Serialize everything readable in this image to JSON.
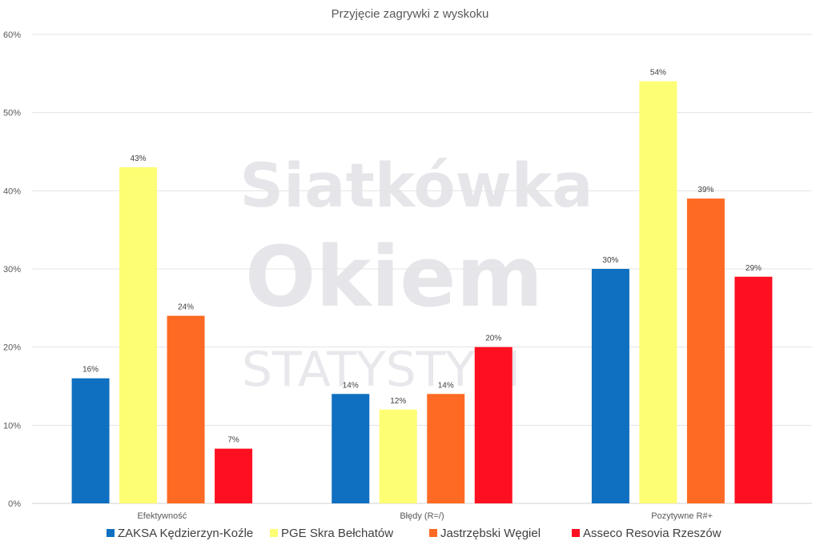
{
  "chart_data": {
    "type": "bar",
    "title": "Przyjęcie zagrywki z wyskoku",
    "categories": [
      "Efektywność",
      "Błędy (R=/)",
      "Pozytywne R#+"
    ],
    "series": [
      {
        "name": "ZAKSA Kędzierzyn-Koźle",
        "color": "#0f6fc0",
        "values": [
          16,
          14,
          30
        ],
        "labels": [
          "16%",
          "14%",
          "30%"
        ]
      },
      {
        "name": "PGE Skra Bełchatów",
        "color": "#fefe75",
        "values": [
          43,
          12,
          54
        ],
        "labels": [
          "43%",
          "12%",
          "54%"
        ]
      },
      {
        "name": "Jastrzębski Węgiel",
        "color": "#fe6a23",
        "values": [
          24,
          14,
          39
        ],
        "labels": [
          "24%",
          "14%",
          "39%"
        ]
      },
      {
        "name": "Asseco Resovia Rzeszów",
        "color": "#fe1020",
        "values": [
          7,
          20,
          29
        ],
        "labels": [
          "7%",
          "20%",
          "29%"
        ]
      }
    ],
    "ylim": [
      0,
      60
    ],
    "yticks": [
      0,
      10,
      20,
      30,
      40,
      50,
      60
    ],
    "ytick_labels": [
      "0%",
      "10%",
      "20%",
      "30%",
      "40%",
      "50%",
      "60%"
    ],
    "grid": true,
    "legend": "bottom",
    "xlabel": "",
    "ylabel": ""
  },
  "watermark": {
    "line1": "Siatkówka",
    "line2": "Okiem",
    "line3": "STATYSTYKI"
  }
}
